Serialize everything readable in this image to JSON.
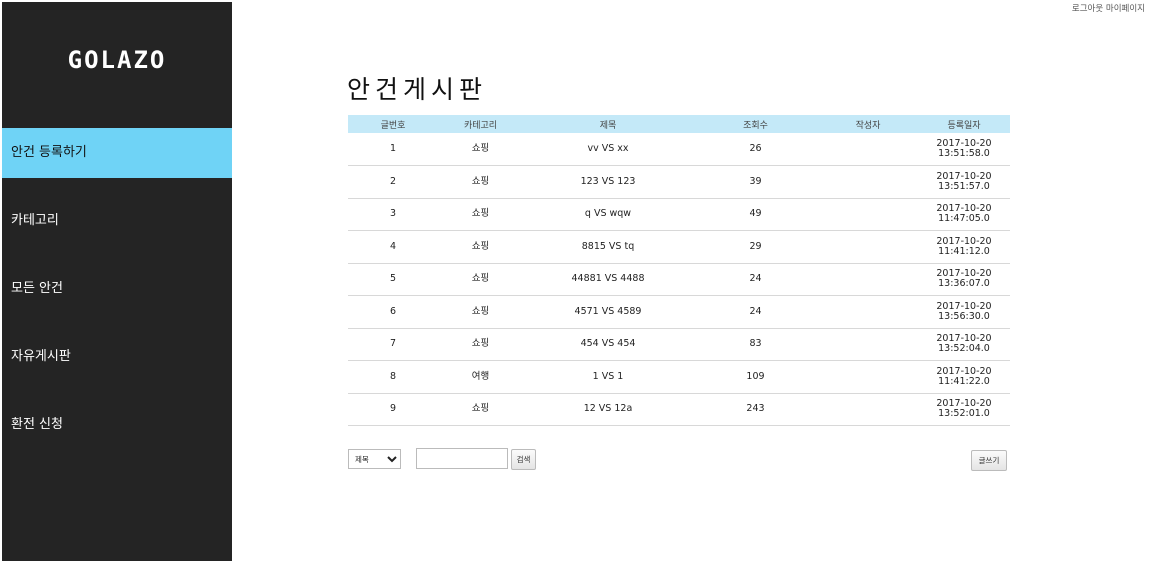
{
  "sidebar": {
    "logo": "GOLAZO",
    "items": [
      {
        "label": "안건 등록하기",
        "active": true
      },
      {
        "label": "카테고리",
        "active": false
      },
      {
        "label": "모든 안건",
        "active": false
      },
      {
        "label": "자유게시판",
        "active": false
      },
      {
        "label": "환전 신청",
        "active": false
      }
    ]
  },
  "top_links": {
    "logout": "로그아웃",
    "mypage": "마이페이지"
  },
  "page": {
    "title": "안건게시판"
  },
  "table": {
    "columns": [
      "글번호",
      "카테고리",
      "제목",
      "조회수",
      "작성자",
      "등록일자"
    ],
    "rows": [
      {
        "no": "1",
        "category": "쇼핑",
        "title": "vv VS xx",
        "views": "26",
        "author": "",
        "date": "2017-10-20",
        "time": "13:51:58.0"
      },
      {
        "no": "2",
        "category": "쇼핑",
        "title": "123 VS 123",
        "views": "39",
        "author": "",
        "date": "2017-10-20",
        "time": "13:51:57.0"
      },
      {
        "no": "3",
        "category": "쇼핑",
        "title": "q VS wqw",
        "views": "49",
        "author": "",
        "date": "2017-10-20",
        "time": "11:47:05.0"
      },
      {
        "no": "4",
        "category": "쇼핑",
        "title": "8815 VS tq",
        "views": "29",
        "author": "",
        "date": "2017-10-20",
        "time": "11:41:12.0"
      },
      {
        "no": "5",
        "category": "쇼핑",
        "title": "44881 VS 4488",
        "views": "24",
        "author": "",
        "date": "2017-10-20",
        "time": "13:36:07.0"
      },
      {
        "no": "6",
        "category": "쇼핑",
        "title": "4571 VS 4589",
        "views": "24",
        "author": "",
        "date": "2017-10-20",
        "time": "13:56:30.0"
      },
      {
        "no": "7",
        "category": "쇼핑",
        "title": "454 VS 454",
        "views": "83",
        "author": "",
        "date": "2017-10-20",
        "time": "13:52:04.0"
      },
      {
        "no": "8",
        "category": "여행",
        "title": "1 VS 1",
        "views": "109",
        "author": "",
        "date": "2017-10-20",
        "time": "11:41:22.0"
      },
      {
        "no": "9",
        "category": "쇼핑",
        "title": "12 VS 12a",
        "views": "243",
        "author": "",
        "date": "2017-10-20",
        "time": "13:52:01.0"
      }
    ]
  },
  "search": {
    "field_selected": "제목",
    "input_value": "",
    "button_label": "검색"
  },
  "write_button_label": "글쓰기",
  "colors": {
    "sidebar_bg": "#242424",
    "active_item": "#6fd3f6",
    "table_header": "#c4e9f8"
  }
}
